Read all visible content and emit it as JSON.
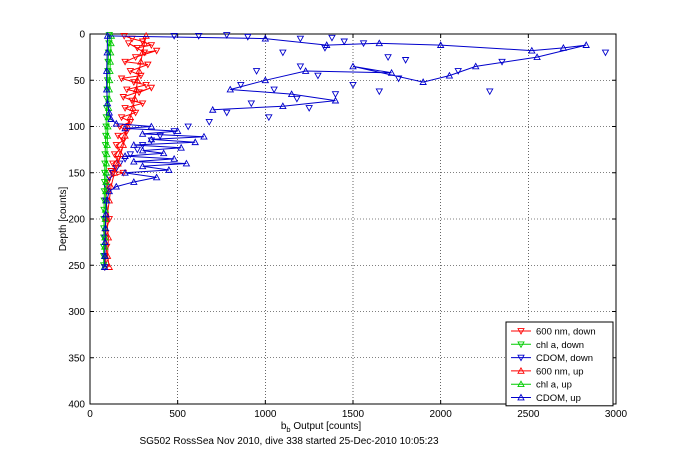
{
  "figure_caption": "SG502 RossSea Nov 2010, dive 338 started 25-Dec-2010 10:05:23",
  "chart_data": {
    "type": "scatter",
    "title": "",
    "xlabel_main": "b",
    "xlabel_sub": "b",
    "xlabel_rest": " Output [counts]",
    "ylabel": "Depth [counts]",
    "xlim": [
      0,
      3000
    ],
    "ylim": [
      0,
      400
    ],
    "y_reversed": true,
    "grid": true,
    "legend_position": "bottom-right",
    "xticks": [
      "0",
      "500",
      "1000",
      "1500",
      "2000",
      "2500",
      "3000"
    ],
    "yticks": [
      "0",
      "50",
      "100",
      "150",
      "200",
      "250",
      "300",
      "350",
      "400"
    ],
    "series": [
      {
        "name": "600 nm, down",
        "color": "#ff0000",
        "marker": "tri-down",
        "line": true,
        "points": [
          [
            195,
            2
          ],
          [
            240,
            5
          ],
          [
            300,
            8
          ],
          [
            350,
            12
          ],
          [
            270,
            15
          ],
          [
            220,
            10
          ],
          [
            310,
            20
          ],
          [
            380,
            18
          ],
          [
            260,
            25
          ],
          [
            200,
            30
          ],
          [
            330,
            33
          ],
          [
            230,
            40
          ],
          [
            290,
            45
          ],
          [
            180,
            48
          ],
          [
            250,
            52
          ],
          [
            320,
            55
          ],
          [
            210,
            60
          ],
          [
            280,
            63
          ],
          [
            350,
            58
          ],
          [
            190,
            68
          ],
          [
            240,
            72
          ],
          [
            300,
            75
          ],
          [
            200,
            80
          ],
          [
            260,
            85
          ],
          [
            180,
            90
          ],
          [
            230,
            95
          ],
          [
            170,
            100
          ],
          [
            210,
            105
          ],
          [
            160,
            110
          ],
          [
            190,
            115
          ],
          [
            150,
            120
          ],
          [
            170,
            125
          ],
          [
            140,
            130
          ],
          [
            160,
            135
          ],
          [
            130,
            140
          ],
          [
            150,
            145
          ],
          [
            120,
            148
          ],
          [
            190,
            150
          ],
          [
            110,
            155
          ],
          [
            100,
            160
          ],
          [
            95,
            170
          ],
          [
            90,
            180
          ],
          [
            110,
            200
          ],
          [
            90,
            215
          ],
          [
            95,
            230
          ],
          [
            90,
            245
          ],
          [
            85,
            252
          ]
        ]
      },
      {
        "name": "chl a, down",
        "color": "#00cc00",
        "marker": "tri-down",
        "line": true,
        "points": [
          [
            110,
            1
          ],
          [
            108,
            10
          ],
          [
            105,
            20
          ],
          [
            103,
            30
          ],
          [
            102,
            40
          ],
          [
            100,
            50
          ],
          [
            98,
            60
          ],
          [
            96,
            70
          ],
          [
            95,
            80
          ],
          [
            93,
            90
          ],
          [
            92,
            100
          ],
          [
            90,
            110
          ],
          [
            88,
            120
          ],
          [
            86,
            130
          ],
          [
            85,
            140
          ],
          [
            84,
            150
          ],
          [
            83,
            160
          ],
          [
            82,
            170
          ],
          [
            81,
            180
          ],
          [
            80,
            190
          ],
          [
            80,
            200
          ],
          [
            79,
            210
          ],
          [
            79,
            220
          ],
          [
            78,
            230
          ],
          [
            78,
            240
          ],
          [
            78,
            250
          ]
        ]
      },
      {
        "name": "CDOM, down",
        "color": "#0000cc",
        "marker": "tri-down",
        "line": false,
        "points": [
          [
            480,
            2
          ],
          [
            620,
            2
          ],
          [
            780,
            1
          ],
          [
            900,
            3
          ],
          [
            1200,
            5
          ],
          [
            1380,
            4
          ],
          [
            1560,
            10
          ],
          [
            1450,
            8
          ],
          [
            2350,
            30
          ],
          [
            2940,
            20
          ],
          [
            1340,
            15
          ],
          [
            1100,
            20
          ],
          [
            1700,
            25
          ],
          [
            1200,
            35
          ],
          [
            950,
            40
          ],
          [
            1800,
            28
          ],
          [
            1300,
            45
          ],
          [
            860,
            55
          ],
          [
            1050,
            60
          ],
          [
            1500,
            55
          ],
          [
            1650,
            62
          ],
          [
            2100,
            40
          ],
          [
            2280,
            62
          ],
          [
            1760,
            48
          ],
          [
            1180,
            70
          ],
          [
            920,
            75
          ],
          [
            1400,
            65
          ],
          [
            1250,
            80
          ],
          [
            780,
            85
          ],
          [
            1020,
            90
          ],
          [
            680,
            95
          ],
          [
            560,
            100
          ],
          [
            480,
            105
          ],
          [
            400,
            110
          ],
          [
            350,
            115
          ],
          [
            300,
            120
          ],
          [
            270,
            125
          ],
          [
            230,
            130
          ],
          [
            200,
            135
          ],
          [
            170,
            140
          ],
          [
            150,
            145
          ],
          [
            130,
            150
          ],
          [
            110,
            155
          ],
          [
            95,
            165
          ],
          [
            90,
            180
          ],
          [
            88,
            200
          ],
          [
            86,
            220
          ],
          [
            85,
            240
          ],
          [
            84,
            252
          ]
        ]
      },
      {
        "name": "600 nm, up",
        "color": "#ff0000",
        "marker": "tri-up",
        "line": true,
        "points": [
          [
            110,
            252
          ],
          [
            100,
            240
          ],
          [
            105,
            220
          ],
          [
            95,
            200
          ],
          [
            110,
            180
          ],
          [
            120,
            165
          ],
          [
            140,
            150
          ],
          [
            160,
            140
          ],
          [
            175,
            130
          ],
          [
            190,
            120
          ],
          [
            200,
            110
          ],
          [
            215,
            100
          ],
          [
            230,
            90
          ],
          [
            245,
            80
          ],
          [
            255,
            70
          ],
          [
            265,
            60
          ],
          [
            270,
            50
          ],
          [
            280,
            40
          ],
          [
            290,
            30
          ],
          [
            300,
            20
          ],
          [
            310,
            10
          ],
          [
            320,
            2
          ]
        ]
      },
      {
        "name": "chl a, up",
        "color": "#00cc00",
        "marker": "tri-up",
        "line": true,
        "points": [
          [
            82,
            252
          ],
          [
            83,
            240
          ],
          [
            84,
            230
          ],
          [
            85,
            220
          ],
          [
            86,
            210
          ],
          [
            87,
            200
          ],
          [
            88,
            190
          ],
          [
            89,
            180
          ],
          [
            90,
            170
          ],
          [
            91,
            160
          ],
          [
            92,
            150
          ],
          [
            94,
            140
          ],
          [
            96,
            130
          ],
          [
            98,
            120
          ],
          [
            100,
            110
          ],
          [
            102,
            100
          ],
          [
            104,
            90
          ],
          [
            106,
            80
          ],
          [
            108,
            70
          ],
          [
            110,
            60
          ],
          [
            112,
            50
          ],
          [
            114,
            40
          ],
          [
            116,
            30
          ],
          [
            118,
            20
          ],
          [
            120,
            10
          ],
          [
            122,
            2
          ]
        ]
      },
      {
        "name": "CDOM, up",
        "color": "#0000cc",
        "marker": "tri-up",
        "line": true,
        "points": [
          [
            84,
            252
          ],
          [
            85,
            240
          ],
          [
            86,
            225
          ],
          [
            88,
            210
          ],
          [
            90,
            195
          ],
          [
            95,
            180
          ],
          [
            110,
            170
          ],
          [
            150,
            165
          ],
          [
            250,
            160
          ],
          [
            380,
            155
          ],
          [
            200,
            150
          ],
          [
            450,
            147
          ],
          [
            300,
            143
          ],
          [
            550,
            140
          ],
          [
            250,
            138
          ],
          [
            480,
            135
          ],
          [
            200,
            132
          ],
          [
            420,
            129
          ],
          [
            300,
            126
          ],
          [
            520,
            123
          ],
          [
            250,
            120
          ],
          [
            600,
            117
          ],
          [
            350,
            114
          ],
          [
            650,
            111
          ],
          [
            300,
            108
          ],
          [
            500,
            105
          ],
          [
            200,
            102
          ],
          [
            350,
            100
          ],
          [
            150,
            97
          ],
          [
            120,
            92
          ],
          [
            110,
            85
          ],
          [
            100,
            75
          ],
          [
            95,
            60
          ],
          [
            95,
            40
          ],
          [
            98,
            20
          ],
          [
            100,
            2
          ],
          [
            1000,
            5
          ],
          [
            1350,
            12
          ],
          [
            1650,
            10
          ],
          [
            2000,
            12
          ],
          [
            2520,
            18
          ],
          [
            2700,
            15
          ],
          [
            2830,
            12
          ],
          [
            2550,
            25
          ],
          [
            2200,
            35
          ],
          [
            2050,
            45
          ],
          [
            1900,
            52
          ],
          [
            1500,
            35
          ],
          [
            1720,
            42
          ],
          [
            1230,
            40
          ],
          [
            1000,
            50
          ],
          [
            800,
            60
          ],
          [
            1150,
            65
          ],
          [
            1400,
            72
          ],
          [
            1100,
            78
          ],
          [
            700,
            82
          ]
        ]
      }
    ]
  }
}
